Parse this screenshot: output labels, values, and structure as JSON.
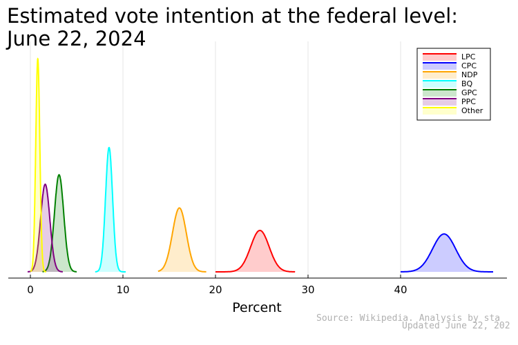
{
  "chart_data": {
    "type": "area",
    "title_line1": "Estimated vote intention at the federal level:",
    "title_line2": "June 22, 2024",
    "xlabel": "Percent",
    "xlim": [
      -2.5,
      51.5
    ],
    "xticks": [
      0,
      10,
      20,
      30,
      40
    ],
    "xtick_labels": [
      "0",
      "10",
      "20",
      "30",
      "40"
    ],
    "grid": true,
    "legend_placement": "top-right",
    "series": [
      {
        "name": "LPC",
        "color": "#ff0000",
        "mean": 24.8,
        "sd": 1.0,
        "peak_density": 0.35,
        "range": [
          20,
          28.6
        ]
      },
      {
        "name": "CPC",
        "color": "#0000ff",
        "mean": 44.7,
        "sd": 1.25,
        "peak_density": 0.32,
        "range": [
          40,
          50
        ]
      },
      {
        "name": "NDP",
        "color": "#ffa500",
        "mean": 16.1,
        "sd": 0.75,
        "peak_density": 0.54,
        "range": [
          13.8,
          19
        ]
      },
      {
        "name": "BQ",
        "color": "#00ffff",
        "mean": 8.5,
        "sd": 0.38,
        "peak_density": 1.05,
        "range": [
          7,
          10.3
        ]
      },
      {
        "name": "GPC",
        "color": "#008000",
        "mean": 3.1,
        "sd": 0.5,
        "peak_density": 0.82,
        "range": [
          1.3,
          5
        ]
      },
      {
        "name": "PPC",
        "color": "#800080",
        "mean": 1.6,
        "sd": 0.5,
        "peak_density": 0.74,
        "range": [
          -0.3,
          3.5
        ]
      },
      {
        "name": "Other",
        "color": "#ffff00",
        "mean": 0.8,
        "sd": 0.22,
        "peak_density": 1.8,
        "range": [
          0,
          1.7
        ]
      }
    ]
  },
  "footer": {
    "source": "Source: Wikipedia. Analysis by sta",
    "updated": "Updated June 22, 202"
  }
}
